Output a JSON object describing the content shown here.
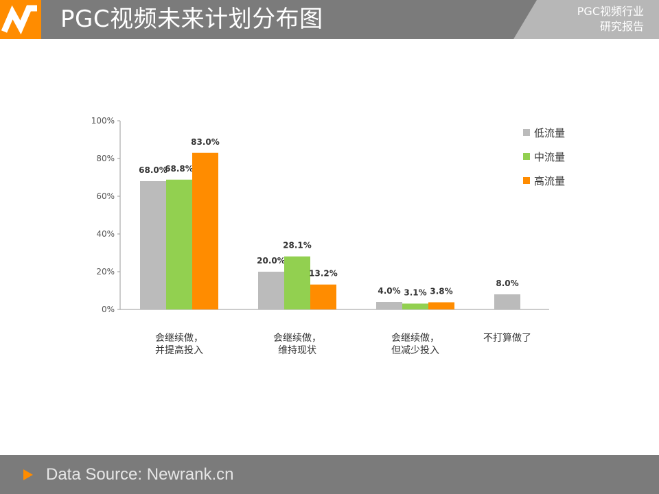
{
  "header": {
    "title": "PGC视频未来计划分布图",
    "corner_line1": "PGC视频行业",
    "corner_line2": "研究报告"
  },
  "footer": {
    "source": "Data Source: Newrank.cn"
  },
  "colors": {
    "header_bg": "#7b7b7b",
    "accent": "#ff8c00",
    "low": "#bbbbbb",
    "mid": "#92d050",
    "high": "#ff8c00"
  },
  "chart_data": {
    "type": "bar",
    "title": "",
    "xlabel": "",
    "ylabel": "",
    "ylim": [
      0,
      100
    ],
    "y_ticks": [
      "0%",
      "20%",
      "40%",
      "60%",
      "80%",
      "100%"
    ],
    "grid": false,
    "legend_position": "top-right",
    "categories": [
      [
        "会继续做，",
        "并提高投入"
      ],
      [
        "会继续做，",
        "维持现状"
      ],
      [
        "会继续做，",
        "但减少投入"
      ],
      [
        "不打算做了"
      ]
    ],
    "series": [
      {
        "name": "低流量",
        "color": "#bbbbbb",
        "values": [
          68.0,
          20.0,
          4.0,
          8.0
        ],
        "labels": [
          "68.0%",
          "20.0%",
          "4.0%",
          "8.0%"
        ]
      },
      {
        "name": "中流量",
        "color": "#92d050",
        "values": [
          68.8,
          28.1,
          3.1,
          null
        ],
        "labels": [
          "68.8%",
          "28.1%",
          "3.1%",
          ""
        ]
      },
      {
        "name": "高流量",
        "color": "#ff8c00",
        "values": [
          83.0,
          13.2,
          3.8,
          null
        ],
        "labels": [
          "83.0%",
          "13.2%",
          "3.8%",
          ""
        ]
      }
    ]
  }
}
